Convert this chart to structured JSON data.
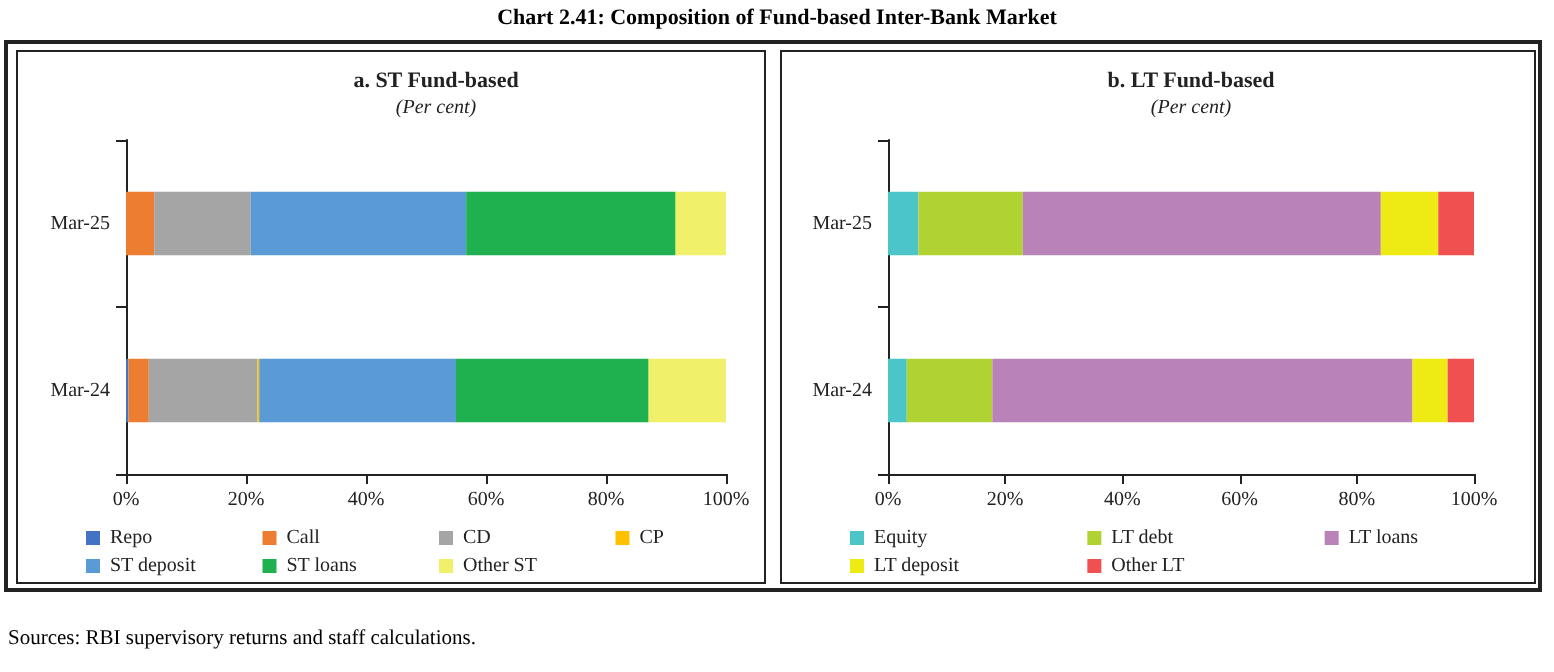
{
  "chart_data": [
    {
      "type": "bar",
      "orientation": "horizontal",
      "stacked": true,
      "title": "a. ST Fund-based",
      "subtitle": "(Per cent)",
      "annotations": [
        "Chart 2.41: Composition of Fund-based Inter-Bank Market"
      ],
      "categories": [
        "Mar-25",
        "Mar-24"
      ],
      "series": [
        {
          "name": "Repo",
          "color": "#4472c4",
          "values": [
            0,
            0.4
          ]
        },
        {
          "name": "Call",
          "color": "#ed7d31",
          "values": [
            4.7,
            3.4
          ]
        },
        {
          "name": "CD",
          "color": "#a5a5a5",
          "values": [
            16.1,
            18.1
          ]
        },
        {
          "name": "CP",
          "color": "#ffc000",
          "values": [
            0,
            0.3
          ]
        },
        {
          "name": "ST deposit",
          "color": "#5b9bd5",
          "values": [
            35.9,
            32.8
          ]
        },
        {
          "name": "ST loans",
          "color": "#1fb050",
          "values": [
            34.9,
            32.1
          ]
        },
        {
          "name": "Other ST",
          "color": "#f0f06a",
          "values": [
            8.4,
            12.9
          ]
        }
      ],
      "xlim": [
        0,
        100
      ],
      "xticks": [
        {
          "value": 0,
          "label": "0%"
        },
        {
          "value": 20,
          "label": "20%"
        },
        {
          "value": 40,
          "label": "40%"
        },
        {
          "value": 60,
          "label": "60%"
        },
        {
          "value": 80,
          "label": "80%"
        },
        {
          "value": 100,
          "label": "100%"
        }
      ],
      "legend": "bottom",
      "grid": false
    },
    {
      "type": "bar",
      "orientation": "horizontal",
      "stacked": true,
      "title": "b. LT Fund-based",
      "subtitle": "(Per cent)",
      "annotations": [
        "Sources: RBI supervisory returns and staff calculations."
      ],
      "categories": [
        "Mar-25",
        "Mar-24"
      ],
      "series": [
        {
          "name": "Equity",
          "color": "#4bc5c8",
          "values": [
            5.2,
            3.2
          ]
        },
        {
          "name": "LT debt",
          "color": "#b0d232",
          "values": [
            17.8,
            14.6
          ]
        },
        {
          "name": "LT loans",
          "color": "#b983b9",
          "values": [
            61.1,
            71.7
          ]
        },
        {
          "name": "LT deposit",
          "color": "#eeea14",
          "values": [
            9.8,
            6.0
          ]
        },
        {
          "name": "Other LT",
          "color": "#f05050",
          "values": [
            6.1,
            4.5
          ]
        }
      ],
      "xlim": [
        0,
        100
      ],
      "xticks": [
        {
          "value": 0,
          "label": "0%"
        },
        {
          "value": 20,
          "label": "20%"
        },
        {
          "value": 40,
          "label": "40%"
        },
        {
          "value": 60,
          "label": "60%"
        },
        {
          "value": 80,
          "label": "80%"
        },
        {
          "value": 100,
          "label": "100%"
        }
      ],
      "legend": "bottom",
      "grid": false
    }
  ]
}
